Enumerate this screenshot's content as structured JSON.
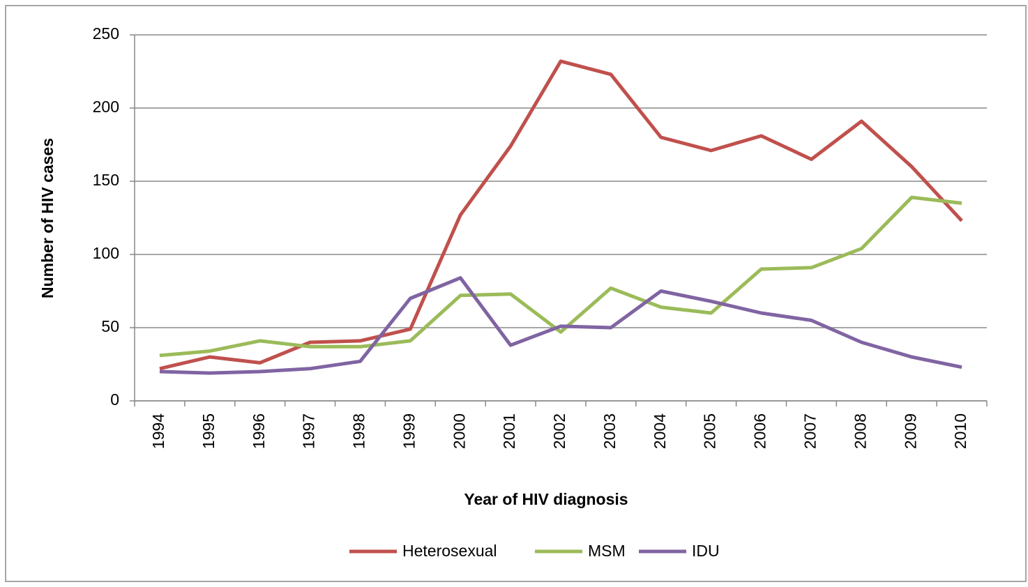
{
  "chart_data": {
    "type": "line",
    "xlabel": "Year of HIV diagnosis",
    "ylabel": "Number of HIV cases",
    "categories": [
      "1994",
      "1995",
      "1996",
      "1997",
      "1998",
      "1999",
      "2000",
      "2001",
      "2002",
      "2003",
      "2004",
      "2005",
      "2006",
      "2007",
      "2008",
      "2009",
      "2010"
    ],
    "series": [
      {
        "name": "Heterosexual",
        "color": "#c0504d",
        "values": [
          22,
          30,
          26,
          40,
          41,
          49,
          127,
          174,
          232,
          223,
          180,
          171,
          181,
          165,
          191,
          160,
          123
        ]
      },
      {
        "name": "MSM",
        "color": "#9bbb59",
        "values": [
          31,
          34,
          41,
          37,
          37,
          41,
          72,
          73,
          47,
          77,
          64,
          60,
          90,
          91,
          104,
          139,
          135
        ]
      },
      {
        "name": "IDU",
        "color": "#8064a2",
        "values": [
          20,
          19,
          20,
          22,
          27,
          70,
          84,
          38,
          51,
          50,
          75,
          68,
          60,
          55,
          40,
          30,
          23
        ]
      }
    ],
    "ylim": [
      0,
      250
    ],
    "yticks": [
      0,
      50,
      100,
      150,
      200,
      250
    ],
    "grid": true,
    "legend": "bottom"
  }
}
